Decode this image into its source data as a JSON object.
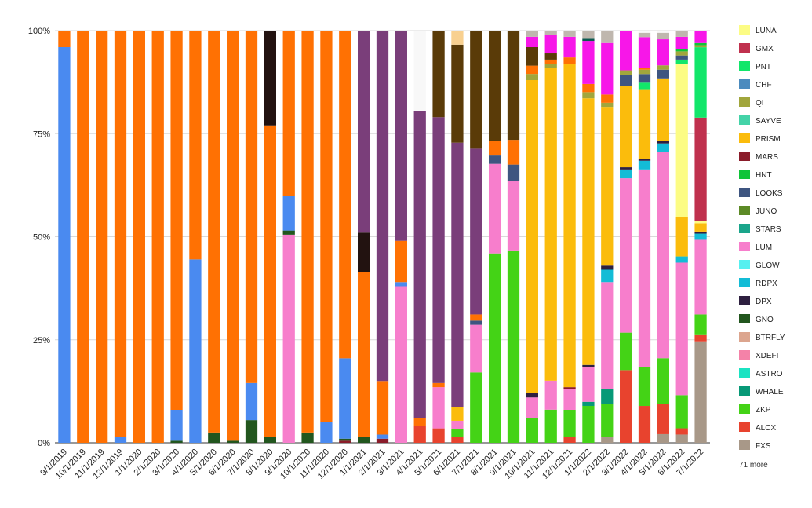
{
  "chart_data": {
    "type": "bar",
    "stacked": "percent",
    "title": "",
    "xlabel": "",
    "ylabel": "",
    "ylim": [
      0,
      1
    ],
    "grid": true,
    "legend_position": "right",
    "y_ticks": [
      "0%",
      "25%",
      "50%",
      "75%",
      "100%"
    ],
    "categories": [
      "9/1/2019",
      "10/1/2019",
      "11/1/2019",
      "12/1/2019",
      "1/1/2020",
      "2/1/2020",
      "3/1/2020",
      "4/1/2020",
      "5/1/2020",
      "6/1/2020",
      "7/1/2020",
      "8/1/2020",
      "9/1/2020",
      "10/1/2020",
      "11/1/2020",
      "12/1/2020",
      "1/1/2021",
      "2/1/2021",
      "3/1/2021",
      "4/1/2021",
      "5/1/2021",
      "6/1/2021",
      "7/1/2021",
      "8/1/2021",
      "9/1/2021",
      "10/1/2021",
      "11/1/2021",
      "12/1/2021",
      "1/1/2022",
      "2/1/2022",
      "3/1/2022",
      "4/1/2022",
      "5/1/2022",
      "6/1/2022",
      "7/1/2022"
    ],
    "series": [
      {
        "name": "FXS",
        "color": "#a89888",
        "values": [
          0,
          0,
          0,
          0,
          0,
          0,
          0,
          0,
          0,
          0,
          0,
          0,
          0,
          0,
          0,
          0,
          0,
          0,
          0,
          0,
          0,
          0,
          0,
          0,
          0,
          0,
          0,
          0,
          0,
          0.015,
          0,
          0,
          0.02,
          0.02,
          0.245
        ]
      },
      {
        "name": "ALCX",
        "color": "#e8432e",
        "values": [
          0,
          0,
          0,
          0,
          0,
          0,
          0,
          0,
          0,
          0,
          0,
          0,
          0,
          0,
          0,
          0,
          0,
          0,
          0,
          0.04,
          0.035,
          0.015,
          0,
          0,
          0,
          0,
          0,
          0.015,
          0,
          0,
          0.165,
          0.085,
          0.07,
          0.015,
          0.015
        ]
      },
      {
        "name": "ZKP",
        "color": "#44d316",
        "values": [
          0,
          0,
          0,
          0,
          0,
          0,
          0,
          0,
          0,
          0,
          0,
          0,
          0,
          0,
          0,
          0,
          0,
          0,
          0,
          0,
          0,
          0.02,
          0.17,
          0.455,
          0.465,
          0.06,
          0.08,
          0.065,
          0.09,
          0.08,
          0.085,
          0.09,
          0.105,
          0.08,
          0.05
        ]
      },
      {
        "name": "WHALE",
        "color": "#079977",
        "values": [
          0,
          0,
          0,
          0,
          0,
          0,
          0,
          0,
          0,
          0,
          0,
          0,
          0,
          0,
          0,
          0,
          0,
          0,
          0,
          0,
          0,
          0,
          0,
          0,
          0,
          0,
          0,
          0,
          0.01,
          0.035,
          0,
          0,
          0,
          0,
          0
        ]
      },
      {
        "name": "XDEFI",
        "color": "#f482a8",
        "values": [
          0,
          0,
          0,
          0,
          0,
          0,
          0,
          0,
          0,
          0,
          0,
          0,
          0,
          0,
          0,
          0,
          0,
          0,
          0,
          0,
          0,
          0,
          0,
          0,
          0,
          0,
          0,
          0,
          0,
          0,
          0,
          0,
          0,
          0,
          0
        ]
      },
      {
        "name": "LUM",
        "color": "#f77ecc",
        "values": [
          0,
          0,
          0,
          0,
          0,
          0,
          0,
          0,
          0,
          0,
          0,
          0,
          0.505,
          0,
          0,
          0,
          0,
          0,
          0.38,
          0,
          0.1,
          0.02,
          0.115,
          0.215,
          0.17,
          0.05,
          0.07,
          0.05,
          0.085,
          0.26,
          0.35,
          0.455,
          0.475,
          0.32,
          0.18
        ]
      },
      {
        "name": "RDPX",
        "color": "#13bcd6",
        "values": [
          0,
          0,
          0,
          0,
          0,
          0,
          0,
          0,
          0,
          0,
          0,
          0,
          0,
          0,
          0,
          0,
          0,
          0,
          0,
          0,
          0,
          0,
          0,
          0,
          0,
          0,
          0,
          0,
          0,
          0.03,
          0.02,
          0.02,
          0.02,
          0.015,
          0.015
        ]
      },
      {
        "name": "DPX",
        "color": "#2e2040",
        "values": [
          0,
          0,
          0,
          0,
          0,
          0,
          0,
          0,
          0,
          0,
          0,
          0,
          0,
          0,
          0,
          0,
          0,
          0,
          0,
          0,
          0,
          0,
          0,
          0,
          0,
          0.01,
          0,
          0,
          0.005,
          0.01,
          0.005,
          0.005,
          0.005,
          0,
          0.005
        ]
      },
      {
        "name": "MARS",
        "color": "#8a1c2a",
        "values": [
          0,
          0,
          0,
          0,
          0,
          0,
          0,
          0,
          0,
          0,
          0,
          0,
          0,
          0,
          0,
          0.005,
          0,
          0.01,
          0,
          0,
          0,
          0,
          0,
          0,
          0,
          0,
          0,
          0.005,
          0,
          0,
          0,
          0,
          0,
          0,
          0
        ]
      },
      {
        "name": "PRISM",
        "color": "#fbbc0c",
        "values": [
          0,
          0,
          0,
          0,
          0,
          0,
          0,
          0,
          0,
          0,
          0,
          0,
          0,
          0,
          0,
          0,
          0,
          0,
          0,
          0,
          0,
          0.035,
          0,
          0,
          0,
          0.76,
          0.755,
          0.785,
          0.65,
          0.385,
          0.185,
          0.16,
          0.145,
          0.095,
          0.02
        ]
      },
      {
        "name": "LUNA",
        "color": "#fcfc84",
        "values": [
          0,
          0,
          0,
          0,
          0,
          0,
          0,
          0,
          0,
          0,
          0,
          0,
          0,
          0,
          0,
          0,
          0,
          0,
          0,
          0,
          0,
          0,
          0,
          0,
          0,
          0,
          0,
          0,
          0,
          0,
          0,
          0,
          0,
          0.37,
          0.005
        ]
      },
      {
        "name": "GMX",
        "color": "#c0314e",
        "values": [
          0,
          0,
          0,
          0,
          0,
          0,
          0,
          0,
          0,
          0,
          0,
          0,
          0,
          0,
          0,
          0,
          0,
          0,
          0,
          0,
          0,
          0,
          0,
          0,
          0,
          0,
          0,
          0,
          0,
          0,
          0,
          0,
          0,
          0,
          0.25
        ]
      },
      {
        "name": "PNT",
        "color": "#12e66a",
        "values": [
          0,
          0,
          0,
          0,
          0,
          0,
          0,
          0,
          0,
          0,
          0,
          0,
          0,
          0,
          0,
          0,
          0,
          0,
          0,
          0,
          0,
          0,
          0,
          0,
          0,
          0,
          0,
          0,
          0,
          0,
          0,
          0.015,
          0,
          0.01,
          0.17
        ]
      },
      {
        "name": "LOOKS",
        "color": "#3e5580",
        "values": [
          0,
          0,
          0,
          0,
          0,
          0,
          0,
          0,
          0,
          0,
          0,
          0,
          0,
          0,
          0,
          0,
          0,
          0,
          0,
          0,
          0,
          0,
          0.01,
          0.02,
          0.04,
          0,
          0,
          0,
          0,
          0,
          0.025,
          0.02,
          0.02,
          0.01,
          0
        ]
      },
      {
        "name": "QI",
        "color": "#a1a63c",
        "values": [
          0,
          0,
          0,
          0,
          0,
          0,
          0,
          0,
          0,
          0,
          0,
          0,
          0,
          0,
          0,
          0,
          0,
          0,
          0,
          0,
          0,
          0,
          0,
          0,
          0,
          0.015,
          0.01,
          0,
          0.015,
          0.01,
          0.01,
          0.01,
          0.01,
          0.01,
          0.005
        ]
      },
      {
        "name": "HNT",
        "color": "#0fc438",
        "values": [
          0,
          0,
          0,
          0,
          0,
          0,
          0,
          0,
          0,
          0,
          0,
          0,
          0,
          0,
          0,
          0,
          0,
          0,
          0,
          0,
          0,
          0,
          0,
          0,
          0,
          0,
          0,
          0,
          0,
          0,
          0,
          0,
          0,
          0.005,
          0.005
        ]
      },
      {
        "name": "GNO",
        "color": "#22561e",
        "values": [
          0,
          0,
          0,
          0,
          0,
          0,
          0.005,
          0,
          0.025,
          0.005,
          0.055,
          0.015,
          0.01,
          0.025,
          0,
          0.005,
          0.015,
          0,
          0,
          0,
          0,
          0,
          0,
          0,
          0,
          0,
          0,
          0,
          0,
          0,
          0,
          0,
          0,
          0,
          0
        ]
      }
    ]
  },
  "legend": {
    "items": [
      {
        "label": "LUNA",
        "color": "#fcfc84"
      },
      {
        "label": "GMX",
        "color": "#c0314e"
      },
      {
        "label": "PNT",
        "color": "#12e66a"
      },
      {
        "label": "CHF",
        "color": "#4b8bbe"
      },
      {
        "label": "QI",
        "color": "#a1a63c"
      },
      {
        "label": "SAYVE",
        "color": "#44d3a8"
      },
      {
        "label": "PRISM",
        "color": "#fbbc0c"
      },
      {
        "label": "MARS",
        "color": "#8a1c2a"
      },
      {
        "label": "HNT",
        "color": "#0fc438"
      },
      {
        "label": "LOOKS",
        "color": "#3e5580"
      },
      {
        "label": "JUNO",
        "color": "#5c8a26"
      },
      {
        "label": "STARS",
        "color": "#1aa58b"
      },
      {
        "label": "LUM",
        "color": "#f77ecc"
      },
      {
        "label": "GLOW",
        "color": "#56f0f0"
      },
      {
        "label": "RDPX",
        "color": "#13bcd6"
      },
      {
        "label": "DPX",
        "color": "#2e2040"
      },
      {
        "label": "GNO",
        "color": "#22561e"
      },
      {
        "label": "BTRFLY",
        "color": "#dca58e"
      },
      {
        "label": "XDEFI",
        "color": "#f482a8"
      },
      {
        "label": "ASTRO",
        "color": "#1be3c2"
      },
      {
        "label": "WHALE",
        "color": "#079977"
      },
      {
        "label": "ZKP",
        "color": "#44d316"
      },
      {
        "label": "ALCX",
        "color": "#e8432e"
      },
      {
        "label": "FXS",
        "color": "#a89888"
      }
    ],
    "more_text": "71 more"
  },
  "hidden_series": [
    {
      "color": "#4a8af0",
      "values": [
        0.96,
        0,
        0,
        0.015,
        0,
        0,
        0.075,
        0.445,
        0,
        0,
        0.09,
        0,
        0.085,
        0,
        0.05,
        0.195,
        0,
        0.01,
        0.01,
        0,
        0,
        0,
        0,
        0,
        0,
        0,
        0,
        0,
        0,
        0,
        0,
        0,
        0,
        0,
        0
      ]
    },
    {
      "color": "#ff7103",
      "values": [
        0.04,
        1,
        0.995,
        0.985,
        1,
        1,
        0.92,
        0.555,
        0.975,
        0.995,
        0.855,
        0.755,
        0.4,
        0.975,
        0.95,
        0.795,
        0.4,
        0.13,
        0.1,
        0.02,
        0.01,
        0,
        0.015,
        0.035,
        0.06,
        0.02,
        0.01,
        0.015,
        0.02,
        0.02,
        0,
        0.005,
        0,
        0,
        0
      ]
    },
    {
      "color": "#221210",
      "values": [
        0,
        0,
        0,
        0,
        0,
        0,
        0,
        0,
        0,
        0,
        0,
        0.23,
        0,
        0,
        0,
        0,
        0.095,
        0,
        0,
        0,
        0,
        0,
        0,
        0,
        0,
        0,
        0,
        0,
        0,
        0,
        0,
        0,
        0,
        0,
        0
      ]
    },
    {
      "color": "#7a3e7a",
      "values": [
        0,
        0,
        0,
        0,
        0,
        0,
        0,
        0,
        0,
        0,
        0,
        0,
        0,
        0,
        0,
        0,
        0.49,
        0.85,
        0.51,
        0.745,
        0.645,
        0.66,
        0.4,
        0,
        0,
        0,
        0,
        0,
        0,
        0,
        0,
        0,
        0,
        0,
        0
      ]
    },
    {
      "color": "#5a3b08",
      "values": [
        0,
        0,
        0,
        0,
        0,
        0,
        0,
        0,
        0,
        0,
        0,
        0,
        0,
        0,
        0,
        0,
        0,
        0,
        0,
        0,
        0.21,
        0.245,
        0.285,
        0.265,
        0.265,
        0.045,
        0.015,
        0,
        0,
        0,
        0,
        0,
        0,
        0,
        0
      ]
    },
    {
      "color": "#f717e8",
      "values": [
        0,
        0,
        0,
        0,
        0,
        0,
        0,
        0,
        0,
        0,
        0,
        0,
        0,
        0,
        0,
        0,
        0,
        0,
        0,
        0,
        0,
        0,
        0,
        0,
        0,
        0.025,
        0.045,
        0.05,
        0.105,
        0.125,
        0.09,
        0.07,
        0.06,
        0.03,
        0.03
      ]
    },
    {
      "color": "#f8d090",
      "values": [
        0,
        0,
        0,
        0,
        0,
        0,
        0,
        0,
        0,
        0,
        0,
        0,
        0,
        0,
        0,
        0,
        0,
        0,
        0,
        0,
        0,
        0.035,
        0,
        0,
        0,
        0,
        0,
        0,
        0,
        0,
        0,
        0,
        0,
        0,
        0
      ]
    },
    {
      "color": "#0c5a50",
      "values": [
        0,
        0,
        0,
        0,
        0,
        0,
        0,
        0,
        0,
        0,
        0,
        0,
        0,
        0,
        0,
        0,
        0,
        0,
        0,
        0,
        0,
        0,
        0,
        0,
        0,
        0,
        0,
        0,
        0.005,
        0,
        0,
        0,
        0,
        0,
        0
      ]
    },
    {
      "color": "#bfb7ae",
      "values": [
        0,
        0,
        0,
        0,
        0,
        0,
        0,
        0,
        0,
        0,
        0,
        0,
        0,
        0,
        0,
        0,
        0,
        0,
        0,
        0,
        0,
        0,
        0,
        0,
        0,
        0.015,
        0.01,
        0.015,
        0.02,
        0.03,
        0,
        0.01,
        0.015,
        0.015,
        0
      ]
    },
    {
      "color": "#f8f8f8",
      "values": [
        0,
        0,
        0,
        0,
        0,
        0,
        0,
        0,
        0,
        0,
        0,
        0,
        0,
        0,
        0,
        0,
        0,
        0,
        0,
        0.195,
        0.0,
        0,
        0,
        0,
        0,
        0,
        0,
        0,
        0,
        0,
        0,
        0.005,
        0.005,
        0,
        0
      ]
    }
  ]
}
